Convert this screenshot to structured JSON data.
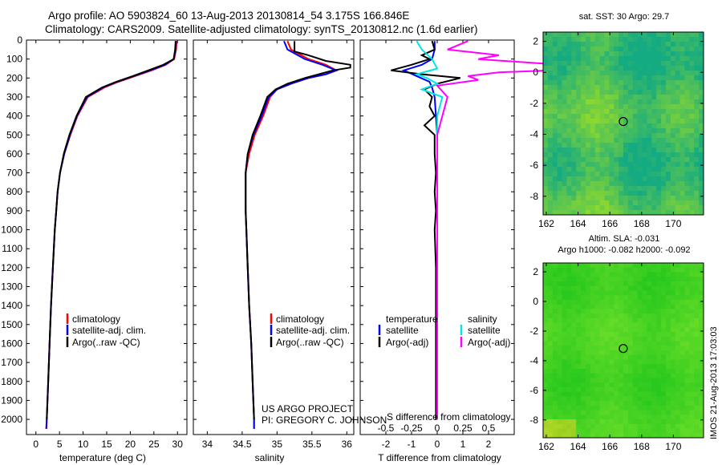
{
  "header": {
    "line1": "Argo profile: AO 5903824_60 13-Aug-2013 20130814_54 3.175S 166.846E",
    "line2": "Climatology: CARS2009. Satellite-adjusted climatology: synTS_20130812.nc (1.6d earlier)"
  },
  "credits": {
    "project": "US ARGO PROJECT",
    "pi": "PI: GREGORY C. JOHNSON",
    "footer": "IMOS 21-Aug-2013 17:03:03"
  },
  "colors": {
    "climatology": "#ff0000",
    "satellite": "#0000ff",
    "argo": "#000000",
    "salinity_satellite": "#00e5e5",
    "salinity_argo": "#ff00ff",
    "map_base": "#33cc33"
  },
  "chart_data": [
    {
      "type": "line",
      "panel": "temperature",
      "xlabel": "temperature (deg C)",
      "ylabel": "",
      "xlim": [
        -2,
        32
      ],
      "ylim": [
        2080,
        0
      ],
      "xticks": [
        0,
        5,
        10,
        15,
        20,
        25,
        30
      ],
      "yticks": [
        0,
        100,
        200,
        300,
        400,
        500,
        600,
        700,
        800,
        900,
        1000,
        1100,
        1200,
        1300,
        1400,
        1500,
        1600,
        1700,
        1800,
        1900,
        2000
      ],
      "legend": [
        "climatology",
        "satellite-adj. clim.",
        "Argo(..raw -QC)"
      ],
      "series": [
        {
          "name": "climatology",
          "depth": [
            5,
            50,
            100,
            130,
            160,
            190,
            220,
            250,
            300,
            400,
            500,
            600,
            700,
            800,
            900,
            1000,
            1200,
            1400,
            1600,
            1800,
            2000,
            2050
          ],
          "values": [
            29.8,
            29.7,
            29.3,
            27.5,
            24.5,
            21.0,
            17.5,
            14.5,
            11.0,
            8.8,
            7.3,
            6.0,
            5.1,
            4.6,
            4.3,
            4.0,
            3.6,
            3.2,
            2.9,
            2.6,
            2.3,
            2.2
          ]
        },
        {
          "name": "satellite-adj. clim.",
          "depth": [
            5,
            50,
            100,
            130,
            160,
            190,
            220,
            250,
            300,
            400,
            500,
            600,
            700,
            800,
            900,
            1000,
            1200,
            1400,
            1600,
            1800,
            2000,
            2050
          ],
          "values": [
            29.7,
            29.6,
            29.2,
            27.3,
            24.2,
            20.7,
            17.2,
            14.2,
            10.8,
            8.7,
            7.2,
            6.0,
            5.1,
            4.6,
            4.3,
            4.0,
            3.6,
            3.2,
            2.9,
            2.6,
            2.3,
            2.2
          ]
        },
        {
          "name": "Argo(..raw -QC)",
          "depth": [
            5,
            50,
            100,
            130,
            160,
            190,
            220,
            250,
            300,
            400,
            500,
            600,
            700,
            800,
            900,
            1000,
            1200,
            1400,
            1600,
            1800,
            2000
          ],
          "values": [
            29.6,
            29.5,
            29.2,
            27.0,
            23.8,
            20.5,
            17.0,
            14.0,
            10.6,
            8.6,
            7.1,
            5.9,
            5.1,
            4.6,
            4.3,
            4.0,
            3.6,
            3.2,
            2.9,
            2.6,
            2.3
          ]
        }
      ]
    },
    {
      "type": "line",
      "panel": "salinity",
      "xlabel": "salinity",
      "xlim": [
        33.8,
        36.1
      ],
      "ylim": [
        2080,
        0
      ],
      "xticks": [
        34,
        34.5,
        35,
        35.5,
        36
      ],
      "legend": [
        "climatology",
        "satellite-adj. clim.",
        "Argo(..raw -QC)"
      ],
      "series": [
        {
          "name": "climatology",
          "depth": [
            5,
            50,
            100,
            130,
            160,
            180,
            200,
            230,
            260,
            300,
            400,
            500,
            600,
            700,
            800,
            900,
            1000,
            1200,
            1400,
            1600,
            1800,
            2000,
            2050
          ],
          "values": [
            35.15,
            35.2,
            35.45,
            35.7,
            35.85,
            35.7,
            35.45,
            35.2,
            35.0,
            34.9,
            34.8,
            34.68,
            34.6,
            34.55,
            34.55,
            34.55,
            34.56,
            34.58,
            34.6,
            34.63,
            34.65,
            34.67,
            34.67
          ]
        },
        {
          "name": "satellite-adj. clim.",
          "depth": [
            5,
            50,
            100,
            130,
            160,
            180,
            200,
            230,
            260,
            300,
            400,
            500,
            600,
            700,
            800,
            900,
            1000,
            1200,
            1400,
            1600,
            1800,
            2000,
            2050
          ],
          "values": [
            35.1,
            35.15,
            35.4,
            35.65,
            35.85,
            35.7,
            35.45,
            35.2,
            35.0,
            34.88,
            34.78,
            34.66,
            34.58,
            34.55,
            34.55,
            34.55,
            34.56,
            34.58,
            34.6,
            34.63,
            34.65,
            34.67,
            34.67
          ]
        },
        {
          "name": "Argo(..raw -QC)",
          "depth": [
            5,
            60,
            80,
            110,
            130,
            145,
            160,
            180,
            200,
            230,
            260,
            300,
            400,
            500,
            600,
            700,
            800,
            900,
            1000,
            1200,
            1400,
            1600,
            1800,
            2000
          ],
          "values": [
            35.25,
            35.25,
            35.45,
            35.7,
            36.05,
            36.05,
            35.8,
            35.6,
            35.4,
            35.15,
            34.98,
            34.86,
            34.76,
            34.65,
            34.58,
            34.55,
            34.55,
            34.55,
            34.56,
            34.58,
            34.6,
            34.63,
            34.65,
            34.67
          ]
        }
      ]
    },
    {
      "type": "line",
      "panel": "difference",
      "xlabel": "T difference from climatology",
      "xlabel_top": "S difference from climatology",
      "xlim": [
        -3,
        3
      ],
      "ylim": [
        2080,
        0
      ],
      "xticks_T": [
        -2,
        -1,
        0,
        1,
        2
      ],
      "xticks_S": [
        -0.5,
        -0.25,
        0,
        0.25,
        0.5
      ],
      "legend": {
        "temperature_header": "temperature",
        "salinity_header": "salinity",
        "items": [
          "satellite",
          "Argo(-adj)",
          "satellite",
          "Argo(-adj)"
        ]
      },
      "series": [
        {
          "name": "temperature satellite",
          "depth": [
            5,
            50,
            100,
            130,
            160,
            190,
            220,
            250,
            300,
            400,
            500,
            600,
            800,
            1000,
            1500,
            2000
          ],
          "values": [
            -0.1,
            -0.1,
            -0.2,
            -0.6,
            -1.3,
            -0.8,
            -0.3,
            -0.2,
            -0.1,
            -0.05,
            0,
            0,
            0,
            0,
            0,
            0
          ]
        },
        {
          "name": "temperature Argo(-adj)",
          "depth": [
            5,
            50,
            80,
            100,
            130,
            160,
            180,
            200,
            230,
            260,
            300,
            350,
            400,
            450,
            500,
            600,
            700,
            800,
            900,
            1000,
            1200,
            1400,
            1600,
            1800,
            2000
          ],
          "values": [
            -0.2,
            -0.1,
            -0.6,
            -0.3,
            -1.0,
            -1.8,
            -0.6,
            0.9,
            0.0,
            -0.5,
            -0.2,
            -0.3,
            -0.1,
            -0.5,
            -0.1,
            -0.1,
            -0.05,
            -0.1,
            -0.05,
            -0.1,
            -0.05,
            -0.05,
            -0.05,
            -0.05,
            -0.05
          ]
        },
        {
          "name": "salinity satellite",
          "depth": [
            5,
            50,
            100,
            150,
            180,
            200,
            230,
            260,
            300,
            400,
            500,
            700,
            1000,
            1500,
            2000
          ],
          "values": [
            -0.2,
            -0.15,
            -0.05,
            0.0,
            -0.2,
            -0.1,
            0.0,
            -0.15,
            0.05,
            0.0,
            0.0,
            0.0,
            0.0,
            0.0,
            0.0
          ]
        },
        {
          "name": "salinity Argo(-adj)",
          "depth": [
            5,
            50,
            80,
            100,
            130,
            150,
            170,
            190,
            210,
            240,
            300,
            400,
            500,
            700,
            1000,
            1500,
            2000
          ],
          "values": [
            0.3,
            0.1,
            0.6,
            0.4,
            1.2,
            1.6,
            0.6,
            0.3,
            0.4,
            0.0,
            0.1,
            0.05,
            0.0,
            0.0,
            0.0,
            0.0,
            0.0
          ]
        }
      ]
    },
    {
      "type": "heatmap",
      "panel": "sst-map",
      "title": "sat. SST: 30 Argo: 29.7",
      "xticks": [
        162,
        164,
        166,
        168,
        170
      ],
      "yticks": [
        2,
        0,
        -2,
        -4,
        -6,
        -8
      ],
      "xlim": [
        161.8,
        171.9
      ],
      "ylim": [
        -9.2,
        2.6
      ],
      "marker": {
        "lon": 166.846,
        "lat": -3.175
      }
    },
    {
      "type": "heatmap",
      "panel": "sla-map",
      "title": "Altim. SLA: -0.031",
      "subtitle": "Argo h1000: -0.082 h2000: -0.092",
      "xticks": [
        162,
        164,
        166,
        168,
        170
      ],
      "yticks": [
        2,
        0,
        -2,
        -4,
        -6,
        -8
      ],
      "xlim": [
        161.8,
        171.9
      ],
      "ylim": [
        -9.2,
        2.6
      ],
      "marker": {
        "lon": 166.846,
        "lat": -3.175
      }
    }
  ]
}
